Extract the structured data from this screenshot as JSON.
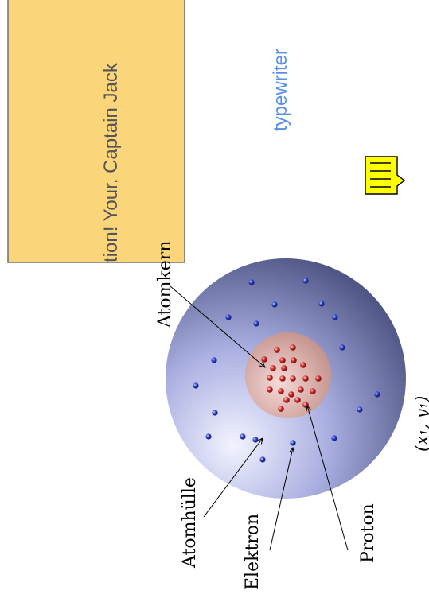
{
  "note_box": {
    "text": "tion! Your, Captain Jack",
    "fill": "#fbd57a",
    "stroke": "#6e6e6e"
  },
  "floating_text": {
    "text": "typewriter",
    "color": "#5a8fe6"
  },
  "comment_icon": {
    "icon": "comment-note-icon",
    "fill": "#ffff00",
    "stroke": "#000000"
  },
  "atom": {
    "labels": {
      "nucleus": "Atomkern",
      "shell": "Atomhülle",
      "electron": "Elektron",
      "proton": "Proton",
      "coordinate": "(x₁, y₁)"
    },
    "colors": {
      "shell_light": "#f2f3ff",
      "shell_mid": "#a9aee0",
      "shell_dark": "#3f4675",
      "nucleus_light": "#f6d9d6",
      "nucleus_dark": "#bf8c86",
      "electron": "#2f3fd0",
      "proton": "#d02a2a"
    }
  }
}
